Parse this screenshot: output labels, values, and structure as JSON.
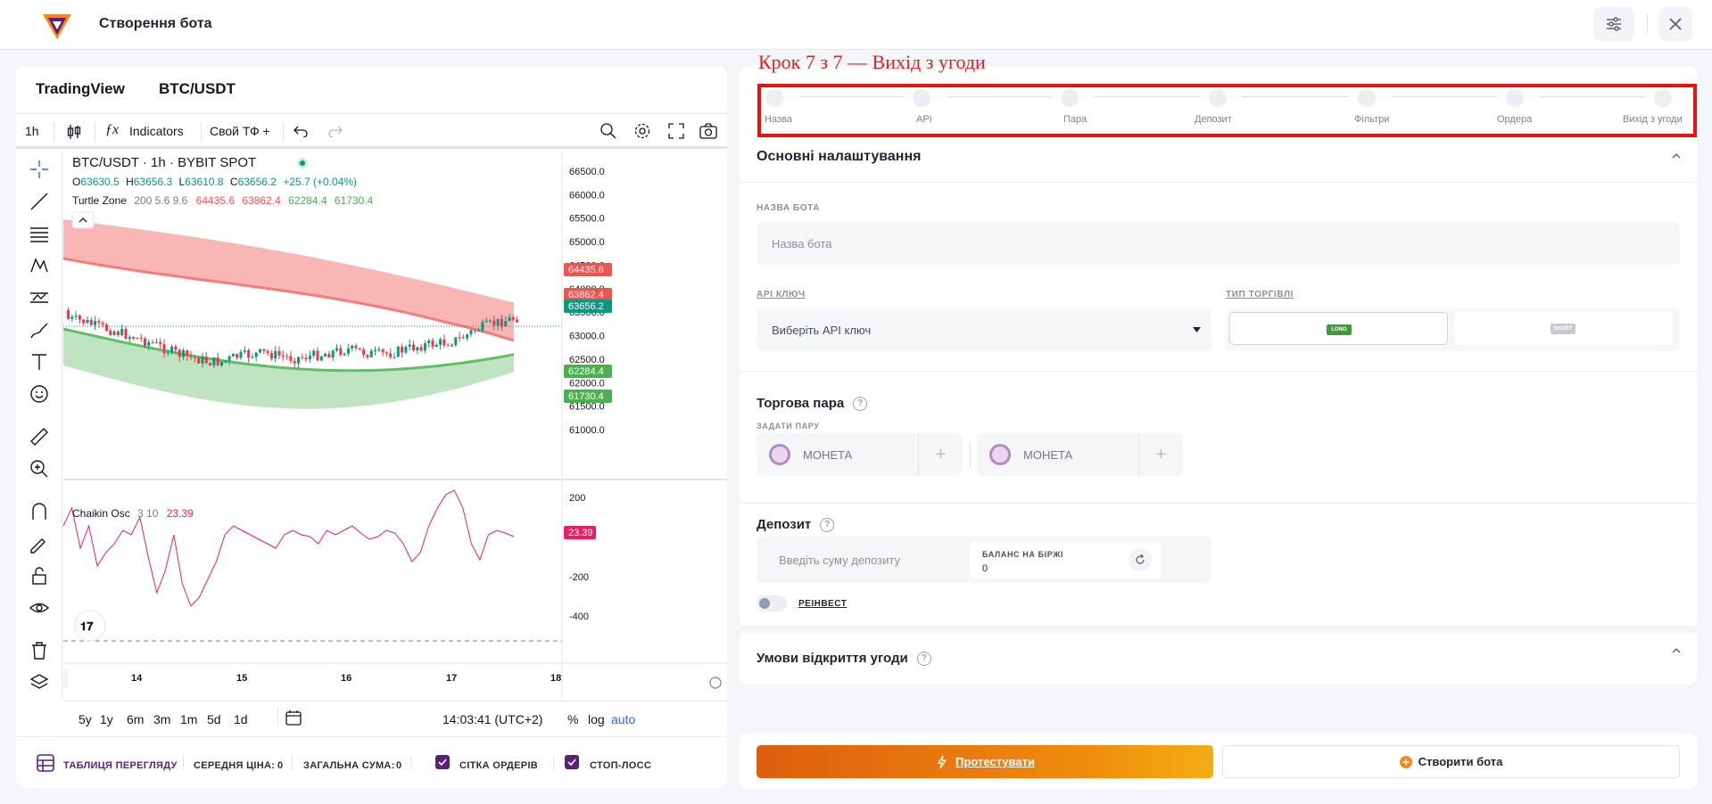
{
  "header": {
    "title": "Створення бота",
    "settings_icon": "sliders-icon",
    "close_icon": "close-icon"
  },
  "chart_panel": {
    "tabs": {
      "tradingview": "TradingView",
      "pair": "BTC/USDT"
    },
    "toolbar": {
      "interval": "1h",
      "indicators": "Indicators",
      "custom_tf": "Свой ТФ +"
    },
    "legend": {
      "symbol": "BTC/USDT · 1h · BYBIT SPOT",
      "o_label": "O",
      "o": "63630.5",
      "h_label": "H",
      "h": "63656.3",
      "l_label": "L",
      "l": "63610.8",
      "c_label": "C",
      "c": "63656.2",
      "change": "+25.7 (+0.04%)",
      "indicator_name": "Turtle Zone",
      "indicator_params": "200 5.6 9.6",
      "ind_v1": "64435.6",
      "ind_v2": "63862.4",
      "ind_v3": "62284.4",
      "ind_v4": "61730.4",
      "osc_name": "Chaikin Osc",
      "osc_params": "3 10",
      "osc_value": "23.39"
    },
    "price_ticks": [
      "66500.0",
      "66000.0",
      "65500.0",
      "65000.0",
      "64500.0",
      "64000.0",
      "63500.0",
      "63000.0",
      "62500.0",
      "62000.0",
      "61500.0",
      "61000.0"
    ],
    "price_tags": [
      {
        "value": "64435.6",
        "color": "#f05350"
      },
      {
        "value": "63862.4",
        "color": "#f05350"
      },
      {
        "value": "63656.2",
        "color": "#089981"
      },
      {
        "value": "62284.4",
        "color": "#4caf50"
      },
      {
        "value": "61730.4",
        "color": "#4caf50"
      }
    ],
    "osc_ticks": [
      "200",
      "-200",
      "-400"
    ],
    "osc_tag": "23.39",
    "time_ticks": [
      "14",
      "15",
      "16",
      "17",
      "18"
    ],
    "ranges": [
      "5y",
      "1y",
      "6m",
      "3m",
      "1m",
      "5d",
      "1d"
    ],
    "clock": "14:03:41 (UTC+2)",
    "scale_opts": {
      "pct": "%",
      "log": "log",
      "auto": "auto"
    },
    "footer": {
      "table": "ТАБЛИЦЯ ПЕРЕГЛЯДУ",
      "avg_label": "СЕРЕДНЯ ЦІНА:",
      "avg_value": "0",
      "total_label": "ЗАГАЛЬНА СУМА:",
      "total_value": "0",
      "grid": "СІТКА ОРДЕРІВ",
      "stoploss": "СТОП-ЛОСС"
    }
  },
  "step_caption": "Крок 7 з 7 — Вихід з угоди",
  "steps": [
    "Назва",
    "API",
    "Пара",
    "Депозит",
    "Фільтри",
    "Ордера",
    "Вихід з угоди"
  ],
  "form": {
    "basic_title": "Основні налаштування",
    "name_label": "НАЗВА БОТА",
    "name_placeholder": "Назва бота",
    "api_label": "API КЛЮЧ",
    "api_placeholder": "Виберіть API ключ",
    "trade_type_label": "ТИП ТОРГІВЛІ",
    "long": "LONG",
    "short": "SHORT",
    "pair_title": "Торгова пара",
    "pair_label": "ЗАДАТИ ПАРУ",
    "coin1": "МОНЕТА",
    "coin2": "МОНЕТА",
    "deposit_title": "Депозит",
    "deposit_placeholder": "Введіть суму депозиту",
    "balance_label": "БАЛАНС НА БІРЖІ",
    "balance_value": "0",
    "reinvest": "РЕІНВЕСТ",
    "open_title": "Умови відкриття угоди"
  },
  "buttons": {
    "test": "Протестувати",
    "create": "Створити бота"
  },
  "colors": {
    "accent": "#5b1f77",
    "up": "#089981",
    "down": "#f23645",
    "stepper_border": "#e8120e"
  }
}
